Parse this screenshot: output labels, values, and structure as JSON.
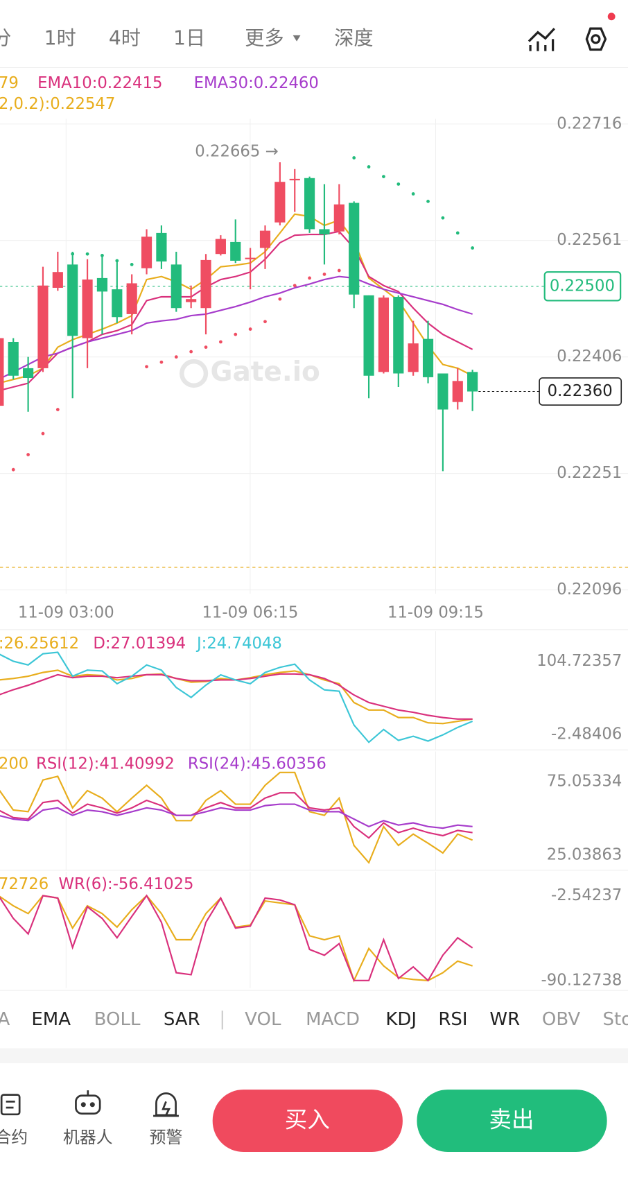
{
  "tabs": [
    {
      "label": "分",
      "active": false
    },
    {
      "label": "1时",
      "active": false
    },
    {
      "label": "4时",
      "active": false
    },
    {
      "label": "1日",
      "active": false
    },
    {
      "label": "更多",
      "active": false
    },
    {
      "label": "深度",
      "active": false
    }
  ],
  "chart_data": [
    {
      "type": "candlestick",
      "xlim": [
        0.1,
        36.87
      ],
      "ylim": [
        0.22091,
        0.22723
      ],
      "yticks": [
        0.22716,
        0.22561,
        0.22406,
        0.22251,
        0.22096
      ],
      "xticks": [
        {
          "value": 4.56,
          "label": "11-09 03:00"
        },
        {
          "value": 16.99,
          "label": "11-09 06:15"
        },
        {
          "value": 29.51,
          "label": "11-09 09:15"
        }
      ],
      "up_color": "#ef4d62",
      "down_color": "#22bb7c",
      "open": [
        0.22341,
        0.22426,
        0.22391,
        0.22391,
        0.22498,
        0.22529,
        0.22431,
        0.22511,
        0.22496,
        0.22463,
        0.22524,
        0.22571,
        0.22529,
        0.22479,
        0.22471,
        0.22543,
        0.22559,
        0.22536,
        0.22551,
        0.22585,
        0.22641,
        0.22644,
        0.22576,
        0.22573,
        0.22611,
        0.22488,
        0.22386,
        0.22486,
        0.22386,
        0.2243,
        0.22384,
        0.22346,
        0.22386
      ],
      "high": [
        0.22441,
        0.22431,
        0.22406,
        0.22526,
        0.22546,
        0.22546,
        0.22536,
        0.22543,
        0.22533,
        0.22516,
        0.22576,
        0.22581,
        0.22546,
        0.22501,
        0.22543,
        0.22568,
        0.22589,
        0.22551,
        0.22581,
        0.22665,
        0.22656,
        0.22646,
        0.22636,
        0.22636,
        0.22613,
        0.22488,
        0.22488,
        0.22488,
        0.22454,
        0.22454,
        0.22384,
        0.22391,
        0.22389
      ],
      "low": [
        0.22336,
        0.22376,
        0.22333,
        0.22386,
        0.22494,
        0.22351,
        0.22391,
        0.22436,
        0.22451,
        0.22436,
        0.22516,
        0.22523,
        0.22466,
        0.22471,
        0.22436,
        0.22541,
        0.22531,
        0.22496,
        0.22523,
        0.22581,
        0.22599,
        0.22571,
        0.22529,
        0.22569,
        0.22471,
        0.22351,
        0.22384,
        0.22366,
        0.22381,
        0.22371,
        0.22254,
        0.22336,
        0.22334
      ],
      "close": [
        0.22431,
        0.22381,
        0.22378,
        0.22501,
        0.22519,
        0.22434,
        0.22509,
        0.22493,
        0.22459,
        0.22504,
        0.22566,
        0.22533,
        0.22471,
        0.22483,
        0.22535,
        0.22563,
        0.22534,
        0.22538,
        0.22574,
        0.22639,
        0.22643,
        0.22576,
        0.22569,
        0.22609,
        0.22489,
        0.22381,
        0.22485,
        0.22384,
        0.22424,
        0.22379,
        0.22336,
        0.22374,
        0.2236
      ],
      "series": [
        {
          "name": "79",
          "color": "#e8ad1c",
          "values": [
            0.22371,
            0.22376,
            0.22381,
            0.22391,
            0.22419,
            0.22429,
            0.22436,
            0.22443,
            0.22451,
            0.22461,
            0.22509,
            0.22513,
            0.22506,
            0.22496,
            0.22509,
            0.22526,
            0.22528,
            0.22531,
            0.22546,
            0.22571,
            0.22596,
            0.22593,
            0.22581,
            0.22588,
            0.22561,
            0.22511,
            0.22496,
            0.22481,
            0.22451,
            0.22421,
            0.22396,
            0.22391,
            0.22381
          ]
        },
        {
          "name": "EMA10:0.22415",
          "color": "#d9307c",
          "values": [
            0.22361,
            0.22366,
            0.22371,
            0.22391,
            0.22411,
            0.22419,
            0.22426,
            0.22436,
            0.22441,
            0.22449,
            0.22481,
            0.22486,
            0.22486,
            0.22486,
            0.22499,
            0.22509,
            0.22513,
            0.22519,
            0.22536,
            0.22558,
            0.22568,
            0.22569,
            0.22569,
            0.22573,
            0.22551,
            0.22513,
            0.22501,
            0.22493,
            0.22471,
            0.22451,
            0.22436,
            0.22426,
            0.22416
          ]
        },
        {
          "name": "EMA30:0.22460",
          "color": "#a63bcb",
          "values": [
            0.22376,
            0.22386,
            0.22396,
            0.22406,
            0.22411,
            0.22419,
            0.22426,
            0.22431,
            0.22436,
            0.22441,
            0.22451,
            0.22454,
            0.22456,
            0.22461,
            0.22463,
            0.22468,
            0.22473,
            0.22479,
            0.22486,
            0.22491,
            0.22498,
            0.22503,
            0.22509,
            0.22513,
            0.22511,
            0.22503,
            0.22496,
            0.22491,
            0.22486,
            0.22481,
            0.22476,
            0.22469,
            0.22463
          ]
        }
      ],
      "sar": {
        "name": "2,0.2):0.22547",
        "color": "#e8ad1c",
        "values": [
          null,
          0.22256,
          0.22276,
          0.22304,
          0.22336,
          0.22543,
          0.22543,
          0.22541,
          0.22534,
          0.22529,
          0.22393,
          0.22399,
          0.22406,
          0.22413,
          0.22419,
          0.22426,
          0.22436,
          0.22443,
          0.22453,
          0.22483,
          0.22501,
          0.22511,
          0.22516,
          0.22521,
          0.22671,
          0.22659,
          0.22646,
          0.22636,
          0.22623,
          0.22613,
          0.22591,
          0.22571,
          0.22551
        ]
      },
      "annotation": {
        "value": 0.22665,
        "label": "0.22665 →"
      },
      "ref_price": {
        "value": 0.225,
        "label": "0.22500"
      },
      "last_price": {
        "value": 0.2236,
        "label": "0.22360"
      },
      "ref_line": 0.22126,
      "watermark": "Gate.io"
    },
    {
      "type": "line",
      "ylim": [
        -25,
        149
      ],
      "yticks": [
        104.72357,
        -2.48406
      ],
      "series": [
        {
          "name": ":26.25612",
          "color": "#e8ad1c",
          "values": [
            77.5,
            79.7,
            83,
            88.5,
            91.8,
            83,
            85.2,
            84.1,
            77.5,
            79.7,
            85.2,
            86.3,
            79.7,
            74.2,
            75.3,
            79.7,
            77.5,
            80.8,
            85.2,
            88.5,
            90.7,
            85.2,
            77.5,
            72,
            44.5,
            33.5,
            33.5,
            22.5,
            22.5,
            14.8,
            13.7,
            17,
            20.3
          ]
        },
        {
          "name": "D:27.01394",
          "color": "#d9307c",
          "values": [
            55.5,
            63.2,
            69.8,
            77.5,
            85.2,
            80.8,
            83,
            83,
            80.8,
            83,
            85.2,
            85.2,
            79.7,
            76.4,
            76.4,
            77.5,
            77.5,
            79.7,
            83,
            86.3,
            86.3,
            85.2,
            79.7,
            69.8,
            55.5,
            44.5,
            39,
            33.5,
            30.2,
            25.8,
            22.5,
            20.3,
            20.3
          ]
        },
        {
          "name": "J:24.74048",
          "color": "#3cc6d6",
          "values": [
            116,
            105,
            99.5,
            116,
            118,
            83,
            92,
            90.7,
            72,
            83,
            99.5,
            92,
            66.5,
            52,
            70,
            85,
            77.5,
            72,
            88.5,
            96,
            100.6,
            77.5,
            63,
            61,
            11.5,
            -13.8,
            5,
            -11,
            -5,
            -12,
            -3,
            8,
            17
          ]
        }
      ]
    },
    {
      "type": "line",
      "ylim": [
        14.9,
        95.5
      ],
      "yticks": [
        75.05334,
        25.03863
      ],
      "series": [
        {
          "name": "200",
          "color": "#e8ad1c",
          "values": [
            70,
            55.7,
            54.6,
            76.1,
            78.6,
            57.2,
            68.9,
            63.8,
            54.6,
            63.8,
            72.5,
            63.8,
            48.5,
            48.5,
            62.3,
            68.9,
            59.7,
            59.7,
            72.5,
            81.2,
            81.2,
            54.6,
            52.1,
            63.8,
            31.7,
            20,
            44.5,
            31.7,
            39.4,
            33.2,
            26.6,
            39.4,
            35.3
          ]
        },
        {
          "name": "RSI(12):41.40992",
          "color": "#d9307c",
          "values": [
            55.7,
            50.6,
            49.6,
            60.8,
            62.3,
            53.6,
            59.7,
            57.2,
            53.6,
            57.2,
            62.3,
            58.7,
            52.1,
            52.1,
            57.2,
            60.8,
            57.2,
            57.2,
            63.8,
            67.4,
            67.4,
            57.2,
            55.7,
            57.2,
            44.5,
            36.8,
            47,
            40.4,
            43.4,
            40.4,
            38.3,
            41.9,
            40.4
          ]
        },
        {
          "name": "RSI(24):45.60356",
          "color": "#a63bcb",
          "values": [
            52.1,
            49.6,
            48.5,
            55.7,
            57.2,
            52.1,
            55.7,
            54.6,
            52.1,
            54.6,
            57.2,
            55.7,
            52.1,
            52.1,
            54.6,
            57.2,
            55.7,
            55.7,
            58.7,
            59.7,
            59.7,
            55.7,
            54.6,
            54.6,
            49.6,
            44.5,
            48.5,
            45.5,
            47,
            44.5,
            43.4,
            45.5,
            44.5
          ]
        }
      ]
    },
    {
      "type": "line",
      "ylim": [
        -97.9,
        22.2
      ],
      "yticks": [
        -2.54237,
        -90.12738
      ],
      "series": [
        {
          "name": "72726",
          "color": "#e8ad1c",
          "values": [
            -2.5,
            -13,
            -21,
            -2.5,
            -5,
            -36,
            -13,
            -21,
            -35,
            -17,
            -2.5,
            -21,
            -48,
            -48,
            -21,
            -5,
            -35,
            -33,
            -8,
            -10,
            -12,
            -44,
            -48,
            -44,
            -90.1,
            -57,
            -75,
            -87,
            -89,
            -90.1,
            -82,
            -70,
            -75
          ]
        },
        {
          "name": "WR(6):-56.41025",
          "color": "#d9307c",
          "values": [
            -2.5,
            -26,
            -42,
            -2.5,
            -5,
            -56,
            -14,
            -26,
            -46,
            -24,
            -2.5,
            -30,
            -82,
            -84,
            -30,
            -5,
            -36,
            -34,
            -5,
            -7,
            -12,
            -58,
            -64,
            -52,
            -90.1,
            -90.1,
            -48,
            -88,
            -76,
            -90.1,
            -64,
            -46,
            -56.4
          ]
        }
      ]
    }
  ],
  "indicator_tabs": [
    {
      "label": "A",
      "active": false
    },
    {
      "label": "EMA",
      "active": true
    },
    {
      "label": "BOLL",
      "active": false
    },
    {
      "label": "SAR",
      "active": true
    },
    {
      "label": "VOL",
      "active": false
    },
    {
      "label": "MACD",
      "active": false
    },
    {
      "label": "KDJ",
      "active": true
    },
    {
      "label": "RSI",
      "active": true
    },
    {
      "label": "WR",
      "active": true
    },
    {
      "label": "OBV",
      "active": false
    },
    {
      "label": "Sto",
      "active": false
    }
  ],
  "nav": [
    "合约",
    "机器人",
    "预警"
  ],
  "buttons": {
    "buy": "买入",
    "sell": "卖出"
  }
}
